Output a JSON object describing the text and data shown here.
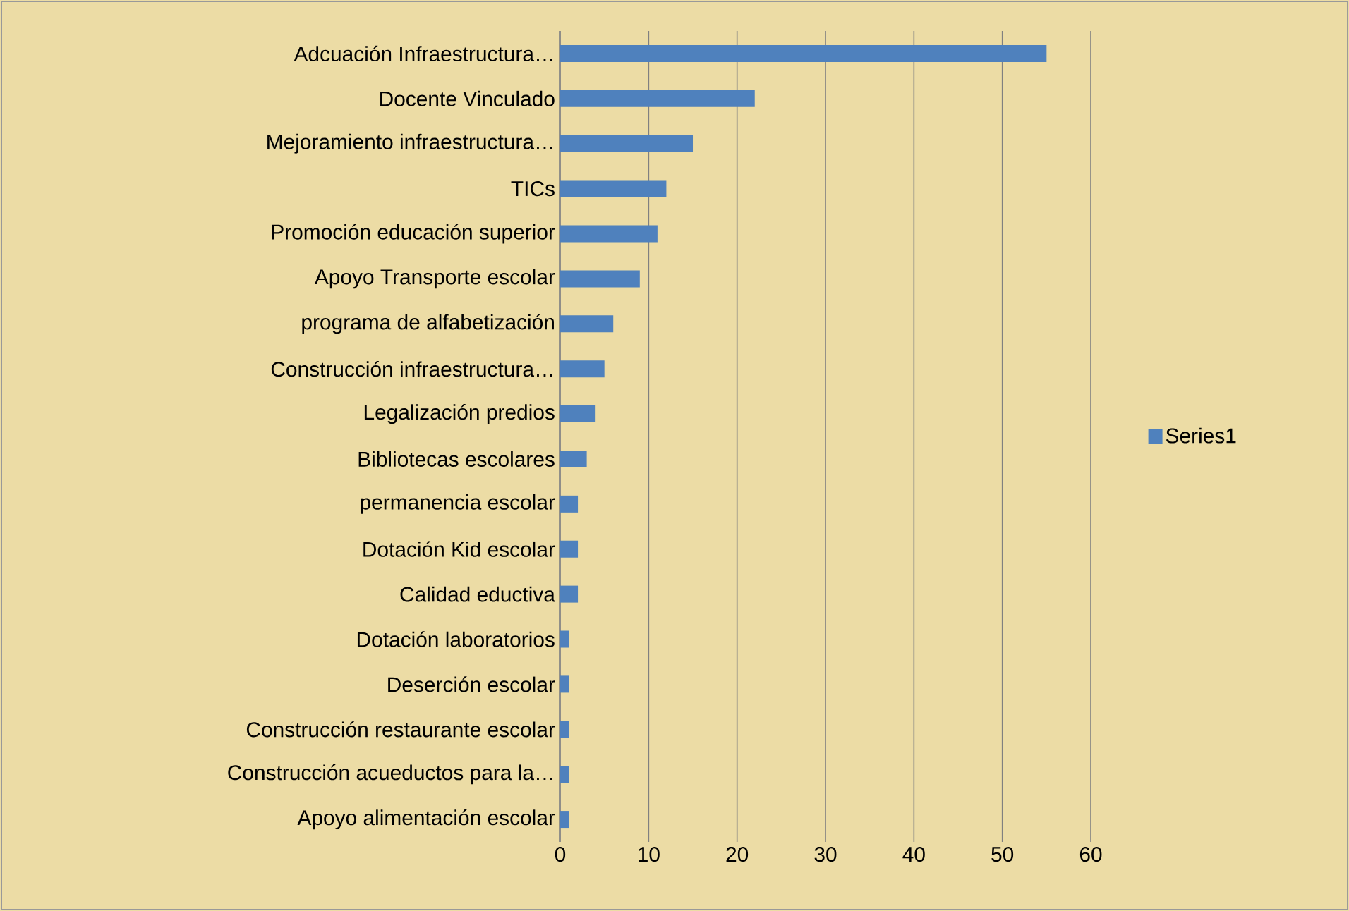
{
  "chart_data": {
    "type": "bar",
    "orientation": "horizontal",
    "categories": [
      "Adcuación Infraestructura…",
      "Docente Vinculado",
      "Mejoramiento infraestructura…",
      "TICs",
      "Promoción educación superior",
      "Apoyo Transporte escolar",
      "programa de alfabetización",
      "Construcción infraestructura…",
      "Legalización predios",
      "Bibliotecas escolares",
      "permanencia escolar",
      "Dotación Kid escolar",
      "Calidad eductiva",
      "Dotación laboratorios",
      "Deserción escolar",
      "Construcción restaurante escolar",
      "Construcción acueductos para la…",
      "Apoyo alimentación escolar"
    ],
    "series": [
      {
        "name": "Series1",
        "color": "#4f81bd",
        "values": [
          55,
          22,
          15,
          12,
          11,
          9,
          6,
          5,
          4,
          3,
          2,
          2,
          2,
          1,
          1,
          1,
          1,
          1
        ]
      }
    ],
    "xlim": [
      0,
      60
    ],
    "xticks": [
      0,
      10,
      20,
      30,
      40,
      50,
      60
    ],
    "grid": "x",
    "legend": "right"
  }
}
